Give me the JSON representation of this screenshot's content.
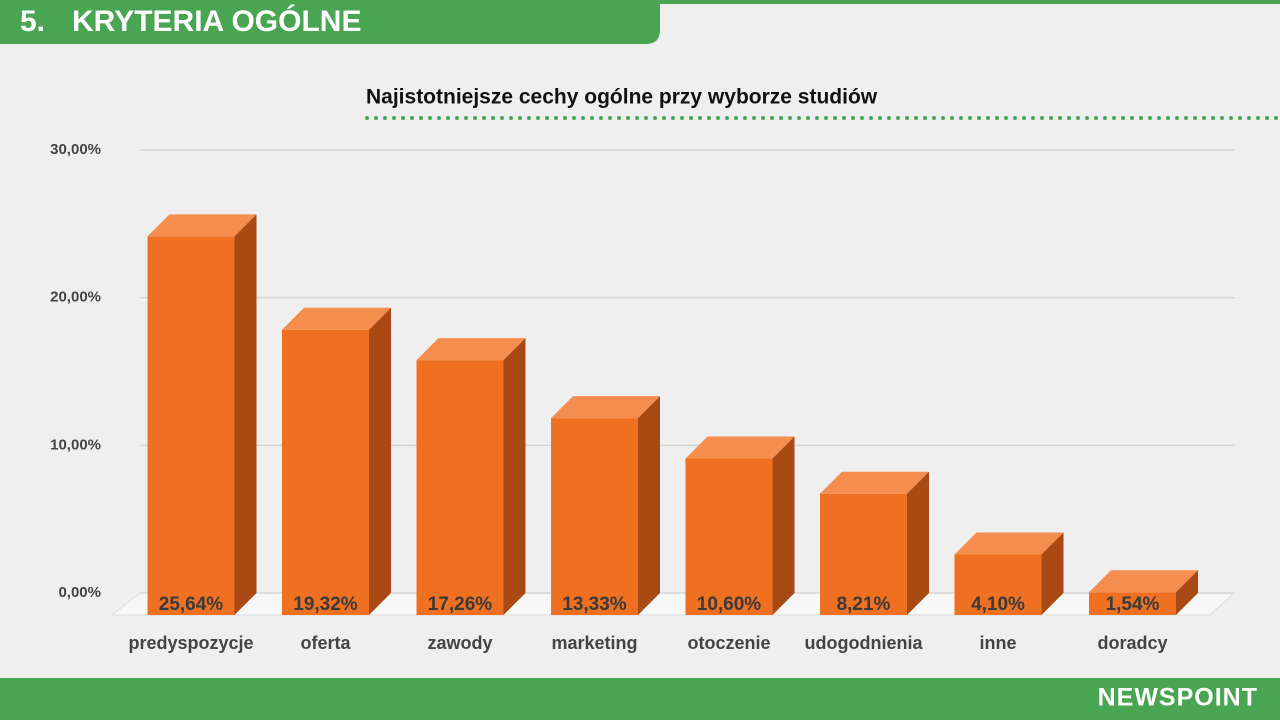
{
  "header": {
    "number": "5.",
    "title": "KRYTERIA OGÓLNE"
  },
  "footer": {
    "logo": "NEWSPOINT"
  },
  "chart_data": {
    "type": "bar",
    "title": "Najistotniejsze cechy ogólne przy wyborze studiów",
    "categories": [
      "predyspozycje",
      "oferta",
      "zawody",
      "marketing",
      "otoczenie",
      "udogodnienia",
      "inne",
      "doradcy"
    ],
    "values": [
      25.64,
      19.32,
      17.26,
      13.33,
      10.6,
      8.21,
      4.1,
      1.54
    ],
    "value_labels": [
      "25,64%",
      "19,32%",
      "17,26%",
      "13,33%",
      "10,60%",
      "8,21%",
      "4,10%",
      "1,54%"
    ],
    "color": "#f07022",
    "ylim": [
      0,
      30
    ],
    "yticks": [
      {
        "value": 0,
        "label": "0,00%"
      },
      {
        "value": 10,
        "label": "10,00%"
      },
      {
        "value": 20,
        "label": "20,00%"
      },
      {
        "value": 30,
        "label": "30,00%"
      }
    ],
    "grid": true
  }
}
